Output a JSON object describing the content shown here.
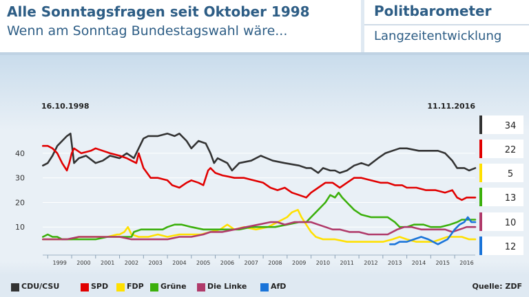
{
  "header": {
    "title": "Alle Sonntagsfragen seit Oktober 1998",
    "subtitle": "Wenn am Sonntag Bundestagswahl wäre...",
    "brand": "Politbarometer",
    "brand_sub": "Langzeitentwicklung"
  },
  "source": "Quelle: ZDF",
  "chart_data": {
    "type": "line",
    "title": "Alle Sonntagsfragen seit Oktober 1998",
    "start_label": "16.10.1998",
    "end_label": "11.11.2016",
    "xlim": [
      1998.79,
      2016.86
    ],
    "ylim": [
      0,
      52
    ],
    "y_ticks": [
      10,
      20,
      30,
      40
    ],
    "x_ticks": [
      "1999",
      "2000",
      "2001",
      "2002",
      "2003",
      "2004",
      "2005",
      "2006",
      "2007",
      "2008",
      "2009",
      "2010",
      "2011",
      "2012",
      "2013",
      "2014",
      "2015",
      "2016"
    ],
    "series": [
      {
        "name": "CDU/CSU",
        "color": "#333333",
        "current": "34",
        "points": [
          [
            1998.8,
            35
          ],
          [
            1999.0,
            36
          ],
          [
            1999.2,
            39
          ],
          [
            1999.4,
            43
          ],
          [
            1999.6,
            45
          ],
          [
            1999.8,
            47
          ],
          [
            1999.95,
            48
          ],
          [
            2000.0,
            44
          ],
          [
            2000.1,
            36
          ],
          [
            2000.3,
            38
          ],
          [
            2000.6,
            39
          ],
          [
            2001.0,
            36
          ],
          [
            2001.3,
            37
          ],
          [
            2001.6,
            39
          ],
          [
            2002.0,
            38
          ],
          [
            2002.3,
            40
          ],
          [
            2002.6,
            38
          ],
          [
            2002.75,
            41
          ],
          [
            2003.0,
            46
          ],
          [
            2003.2,
            47
          ],
          [
            2003.6,
            47
          ],
          [
            2004.0,
            48
          ],
          [
            2004.3,
            47
          ],
          [
            2004.5,
            48
          ],
          [
            2004.8,
            45
          ],
          [
            2005.0,
            42
          ],
          [
            2005.3,
            45
          ],
          [
            2005.6,
            44
          ],
          [
            2005.8,
            40
          ],
          [
            2005.95,
            36
          ],
          [
            2006.1,
            38
          ],
          [
            2006.3,
            37
          ],
          [
            2006.5,
            36
          ],
          [
            2006.7,
            33
          ],
          [
            2007.0,
            36
          ],
          [
            2007.5,
            37
          ],
          [
            2007.9,
            39
          ],
          [
            2008.4,
            37
          ],
          [
            2008.9,
            36
          ],
          [
            2009.5,
            35
          ],
          [
            2009.8,
            34
          ],
          [
            2010.0,
            34
          ],
          [
            2010.3,
            32
          ],
          [
            2010.5,
            34
          ],
          [
            2010.8,
            33
          ],
          [
            2011.0,
            33
          ],
          [
            2011.2,
            32
          ],
          [
            2011.5,
            33
          ],
          [
            2011.8,
            35
          ],
          [
            2012.1,
            36
          ],
          [
            2012.4,
            35
          ],
          [
            2012.8,
            38
          ],
          [
            2013.1,
            40
          ],
          [
            2013.4,
            41
          ],
          [
            2013.7,
            42
          ],
          [
            2014.0,
            42
          ],
          [
            2014.5,
            41
          ],
          [
            2015.0,
            41
          ],
          [
            2015.3,
            41
          ],
          [
            2015.6,
            40
          ],
          [
            2015.9,
            37
          ],
          [
            2016.1,
            34
          ],
          [
            2016.4,
            34
          ],
          [
            2016.6,
            33
          ],
          [
            2016.86,
            34
          ]
        ]
      },
      {
        "name": "SPD",
        "color": "#e10000",
        "current": "22",
        "points": [
          [
            1998.8,
            43
          ],
          [
            1999.0,
            43
          ],
          [
            1999.2,
            42
          ],
          [
            1999.4,
            40
          ],
          [
            1999.6,
            36
          ],
          [
            1999.8,
            33
          ],
          [
            1999.9,
            36
          ],
          [
            2000.0,
            40
          ],
          [
            2000.1,
            42
          ],
          [
            2000.4,
            40
          ],
          [
            2000.8,
            41
          ],
          [
            2001.0,
            42
          ],
          [
            2001.3,
            41
          ],
          [
            2001.6,
            40
          ],
          [
            2002.0,
            39
          ],
          [
            2002.3,
            38
          ],
          [
            2002.5,
            37
          ],
          [
            2002.7,
            36
          ],
          [
            2002.8,
            40
          ],
          [
            2003.0,
            34
          ],
          [
            2003.3,
            30
          ],
          [
            2003.6,
            30
          ],
          [
            2004.0,
            29
          ],
          [
            2004.2,
            27
          ],
          [
            2004.5,
            26
          ],
          [
            2004.8,
            28
          ],
          [
            2005.0,
            29
          ],
          [
            2005.3,
            28
          ],
          [
            2005.5,
            27
          ],
          [
            2005.7,
            33
          ],
          [
            2005.8,
            34
          ],
          [
            2006.0,
            32
          ],
          [
            2006.3,
            31
          ],
          [
            2006.8,
            30
          ],
          [
            2007.2,
            30
          ],
          [
            2007.6,
            29
          ],
          [
            2008.0,
            28
          ],
          [
            2008.3,
            26
          ],
          [
            2008.6,
            25
          ],
          [
            2008.9,
            26
          ],
          [
            2009.2,
            24
          ],
          [
            2009.5,
            23
          ],
          [
            2009.8,
            22
          ],
          [
            2010.0,
            24
          ],
          [
            2010.3,
            26
          ],
          [
            2010.6,
            28
          ],
          [
            2010.9,
            28
          ],
          [
            2011.2,
            26
          ],
          [
            2011.5,
            28
          ],
          [
            2011.8,
            30
          ],
          [
            2012.1,
            30
          ],
          [
            2012.5,
            29
          ],
          [
            2012.9,
            28
          ],
          [
            2013.2,
            28
          ],
          [
            2013.5,
            27
          ],
          [
            2013.8,
            27
          ],
          [
            2014.0,
            26
          ],
          [
            2014.4,
            26
          ],
          [
            2014.8,
            25
          ],
          [
            2015.2,
            25
          ],
          [
            2015.6,
            24
          ],
          [
            2015.9,
            25
          ],
          [
            2016.1,
            22
          ],
          [
            2016.3,
            21
          ],
          [
            2016.5,
            22
          ],
          [
            2016.86,
            22
          ]
        ]
      },
      {
        "name": "FDP",
        "color": "#ffe000",
        "current": "5",
        "points": [
          [
            1998.8,
            5
          ],
          [
            1999.3,
            5
          ],
          [
            1999.8,
            5
          ],
          [
            2000.0,
            5
          ],
          [
            2000.3,
            6
          ],
          [
            2000.6,
            6
          ],
          [
            2001.0,
            6
          ],
          [
            2001.5,
            6
          ],
          [
            2001.9,
            7
          ],
          [
            2002.0,
            7
          ],
          [
            2002.2,
            8
          ],
          [
            2002.35,
            10
          ],
          [
            2002.5,
            7
          ],
          [
            2002.8,
            6
          ],
          [
            2003.2,
            6
          ],
          [
            2003.6,
            7
          ],
          [
            2004.0,
            6
          ],
          [
            2004.5,
            7
          ],
          [
            2005.0,
            7
          ],
          [
            2005.4,
            7
          ],
          [
            2005.8,
            8
          ],
          [
            2006.2,
            9
          ],
          [
            2006.5,
            11
          ],
          [
            2006.8,
            9
          ],
          [
            2007.2,
            10
          ],
          [
            2007.7,
            9
          ],
          [
            2008.2,
            10
          ],
          [
            2008.6,
            12
          ],
          [
            2008.8,
            13
          ],
          [
            2009.0,
            14
          ],
          [
            2009.2,
            16
          ],
          [
            2009.45,
            17
          ],
          [
            2009.6,
            14
          ],
          [
            2009.8,
            11
          ],
          [
            2010.0,
            8
          ],
          [
            2010.2,
            6
          ],
          [
            2010.5,
            5
          ],
          [
            2011.0,
            5
          ],
          [
            2011.5,
            4
          ],
          [
            2012.0,
            4
          ],
          [
            2012.5,
            4
          ],
          [
            2013.0,
            4
          ],
          [
            2013.4,
            5
          ],
          [
            2013.7,
            6
          ],
          [
            2014.0,
            5
          ],
          [
            2014.4,
            4
          ],
          [
            2014.8,
            4
          ],
          [
            2015.1,
            4
          ],
          [
            2015.4,
            5
          ],
          [
            2015.7,
            6
          ],
          [
            2016.0,
            6
          ],
          [
            2016.3,
            6
          ],
          [
            2016.6,
            5
          ],
          [
            2016.86,
            5
          ]
        ]
      },
      {
        "name": "Grüne",
        "color": "#3cb00c",
        "current": "13",
        "points": [
          [
            1998.8,
            6
          ],
          [
            1999.0,
            7
          ],
          [
            1999.2,
            6
          ],
          [
            1999.4,
            6
          ],
          [
            1999.6,
            5
          ],
          [
            1999.9,
            5
          ],
          [
            2000.2,
            5
          ],
          [
            2000.6,
            5
          ],
          [
            2001.0,
            5
          ],
          [
            2001.5,
            6
          ],
          [
            2002.0,
            6
          ],
          [
            2002.5,
            6
          ],
          [
            2002.6,
            8
          ],
          [
            2002.9,
            9
          ],
          [
            2003.4,
            9
          ],
          [
            2003.8,
            9
          ],
          [
            2004.0,
            10
          ],
          [
            2004.3,
            11
          ],
          [
            2004.6,
            11
          ],
          [
            2005.0,
            10
          ],
          [
            2005.5,
            9
          ],
          [
            2006.0,
            9
          ],
          [
            2006.5,
            9
          ],
          [
            2007.0,
            9
          ],
          [
            2007.5,
            10
          ],
          [
            2008.0,
            10
          ],
          [
            2008.5,
            10
          ],
          [
            2009.0,
            11
          ],
          [
            2009.5,
            12
          ],
          [
            2009.8,
            12
          ],
          [
            2010.0,
            14
          ],
          [
            2010.2,
            16
          ],
          [
            2010.4,
            18
          ],
          [
            2010.6,
            20
          ],
          [
            2010.8,
            23
          ],
          [
            2011.0,
            22
          ],
          [
            2011.15,
            24
          ],
          [
            2011.3,
            22
          ],
          [
            2011.5,
            20
          ],
          [
            2011.8,
            17
          ],
          [
            2012.1,
            15
          ],
          [
            2012.5,
            14
          ],
          [
            2012.9,
            14
          ],
          [
            2013.2,
            14
          ],
          [
            2013.5,
            12
          ],
          [
            2013.7,
            10
          ],
          [
            2014.0,
            10
          ],
          [
            2014.3,
            11
          ],
          [
            2014.7,
            11
          ],
          [
            2015.0,
            10
          ],
          [
            2015.4,
            10
          ],
          [
            2015.8,
            11
          ],
          [
            2016.1,
            12
          ],
          [
            2016.3,
            13
          ],
          [
            2016.6,
            13
          ],
          [
            2016.86,
            13
          ]
        ]
      },
      {
        "name": "Die Linke",
        "color": "#b03a6a",
        "current": "10",
        "points": [
          [
            1998.8,
            5
          ],
          [
            1999.3,
            5
          ],
          [
            1999.8,
            5
          ],
          [
            2000.3,
            6
          ],
          [
            2001.0,
            6
          ],
          [
            2001.5,
            6
          ],
          [
            2002.0,
            6
          ],
          [
            2002.5,
            5
          ],
          [
            2003.0,
            5
          ],
          [
            2003.5,
            5
          ],
          [
            2004.0,
            5
          ],
          [
            2004.5,
            6
          ],
          [
            2005.0,
            6
          ],
          [
            2005.5,
            7
          ],
          [
            2005.8,
            8
          ],
          [
            2006.3,
            8
          ],
          [
            2006.8,
            9
          ],
          [
            2007.3,
            10
          ],
          [
            2007.8,
            11
          ],
          [
            2008.3,
            12
          ],
          [
            2008.6,
            12
          ],
          [
            2008.9,
            11
          ],
          [
            2009.3,
            12
          ],
          [
            2009.7,
            12
          ],
          [
            2010.0,
            12
          ],
          [
            2010.3,
            11
          ],
          [
            2010.6,
            10
          ],
          [
            2010.9,
            9
          ],
          [
            2011.2,
            9
          ],
          [
            2011.6,
            8
          ],
          [
            2012.0,
            8
          ],
          [
            2012.4,
            7
          ],
          [
            2012.8,
            7
          ],
          [
            2013.2,
            7
          ],
          [
            2013.6,
            9
          ],
          [
            2013.9,
            10
          ],
          [
            2014.2,
            10
          ],
          [
            2014.6,
            9
          ],
          [
            2014.9,
            9
          ],
          [
            2015.2,
            9
          ],
          [
            2015.6,
            9
          ],
          [
            2015.9,
            8
          ],
          [
            2016.2,
            9
          ],
          [
            2016.5,
            10
          ],
          [
            2016.86,
            10
          ]
        ]
      },
      {
        "name": "AfD",
        "color": "#1a74d9",
        "current": "12",
        "points": [
          [
            2013.3,
            3
          ],
          [
            2013.5,
            3
          ],
          [
            2013.7,
            4
          ],
          [
            2014.0,
            4
          ],
          [
            2014.3,
            5
          ],
          [
            2014.6,
            6
          ],
          [
            2014.9,
            5
          ],
          [
            2015.1,
            4
          ],
          [
            2015.3,
            3
          ],
          [
            2015.5,
            4
          ],
          [
            2015.7,
            5
          ],
          [
            2015.85,
            7
          ],
          [
            2016.0,
            9
          ],
          [
            2016.2,
            11
          ],
          [
            2016.4,
            12
          ],
          [
            2016.55,
            14
          ],
          [
            2016.7,
            12
          ],
          [
            2016.86,
            12
          ]
        ]
      }
    ]
  }
}
